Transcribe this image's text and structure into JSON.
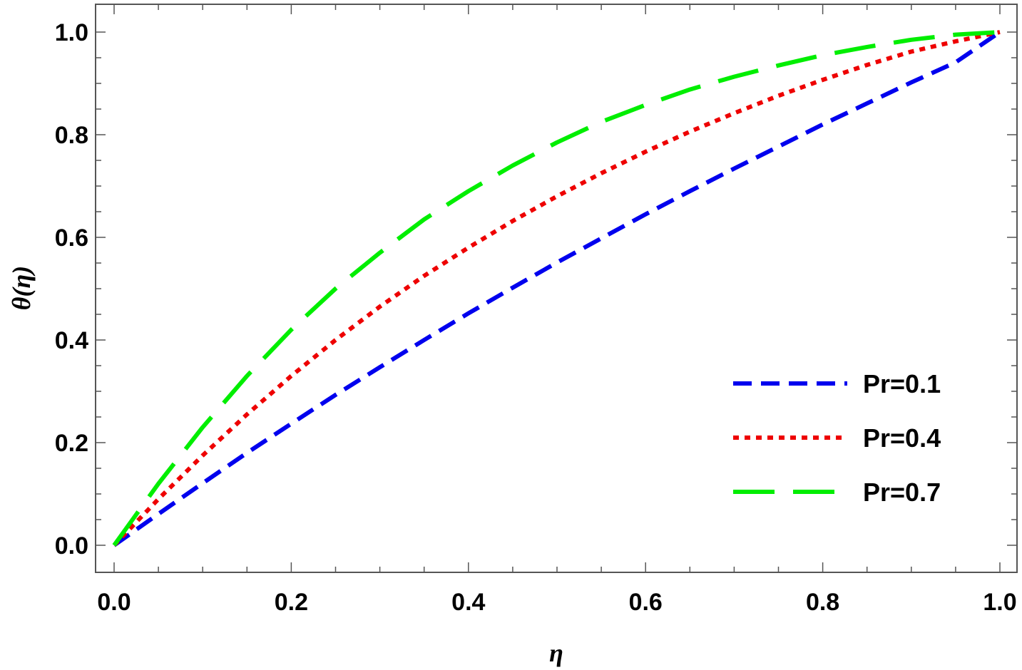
{
  "chart_data": {
    "type": "line",
    "title": "",
    "xlabel": "η",
    "ylabel": "θ(η)",
    "xlim": [
      0,
      1
    ],
    "ylim": [
      0,
      1
    ],
    "x_ticks": [
      "0.0",
      "0.2",
      "0.4",
      "0.6",
      "0.8",
      "1.0"
    ],
    "y_ticks": [
      "0.0",
      "0.2",
      "0.4",
      "0.6",
      "0.8",
      "1.0"
    ],
    "grid": false,
    "legend_position": "bottom-right",
    "x": [
      0,
      0.05,
      0.1,
      0.15,
      0.2,
      0.25,
      0.3,
      0.35,
      0.4,
      0.45,
      0.5,
      0.55,
      0.6,
      0.65,
      0.7,
      0.75,
      0.8,
      0.85,
      0.9,
      0.95,
      1.0
    ],
    "series": [
      {
        "name": "Pr=0.1",
        "color": "#0000ee",
        "dash": "dashed",
        "values": [
          0,
          0.061,
          0.121,
          0.18,
          0.237,
          0.293,
          0.347,
          0.4,
          0.452,
          0.502,
          0.551,
          0.598,
          0.645,
          0.69,
          0.734,
          0.777,
          0.82,
          0.861,
          0.902,
          0.941,
          1.0
        ]
      },
      {
        "name": "Pr=0.4",
        "color": "#ee0000",
        "dash": "dotted",
        "values": [
          0,
          0.09,
          0.175,
          0.255,
          0.33,
          0.4,
          0.465,
          0.525,
          0.58,
          0.632,
          0.68,
          0.725,
          0.767,
          0.806,
          0.842,
          0.876,
          0.907,
          0.936,
          0.962,
          0.982,
          1.0
        ]
      },
      {
        "name": "Pr=0.7",
        "color": "#00ee00",
        "dash": "long-dashed",
        "values": [
          0,
          0.12,
          0.23,
          0.33,
          0.42,
          0.5,
          0.57,
          0.635,
          0.69,
          0.74,
          0.785,
          0.825,
          0.858,
          0.888,
          0.913,
          0.935,
          0.955,
          0.971,
          0.985,
          0.995,
          1.0
        ]
      }
    ]
  }
}
